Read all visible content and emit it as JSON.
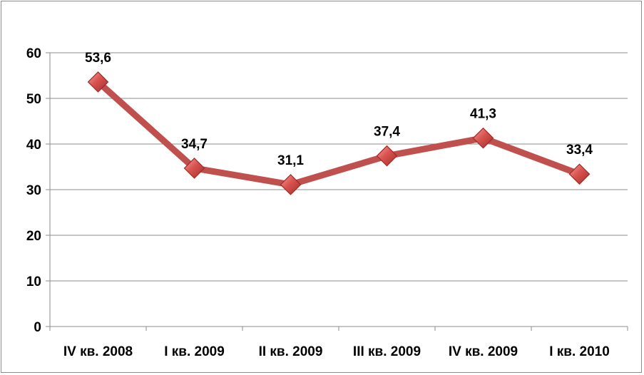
{
  "chart_data": {
    "type": "line",
    "title": "",
    "xlabel": "",
    "ylabel": "",
    "categories": [
      "IV кв. 2008",
      "I кв. 2009",
      "II кв. 2009",
      "III кв. 2009",
      "IV кв. 2009",
      "I кв. 2010"
    ],
    "series": [
      {
        "values": [
          53.6,
          34.7,
          31.1,
          37.4,
          41.3,
          33.4
        ],
        "data_labels": [
          "53,6",
          "34,7",
          "31,1",
          "37,4",
          "41,3",
          "33,4"
        ],
        "color": "#c0504d",
        "marker": "diamond"
      }
    ],
    "ylim": [
      0,
      60
    ],
    "yticks": [
      0,
      10,
      20,
      30,
      40,
      50,
      60
    ],
    "ytick_labels": [
      "0",
      "10",
      "20",
      "30",
      "40",
      "50",
      "60"
    ],
    "grid": true,
    "legend": "none"
  },
  "colors": {
    "line": "#c0504d",
    "marker_fill": "#d9534f",
    "marker_edge": "#9e2b28",
    "gridline": "#8c8c8c",
    "axis": "#8c8c8c"
  }
}
